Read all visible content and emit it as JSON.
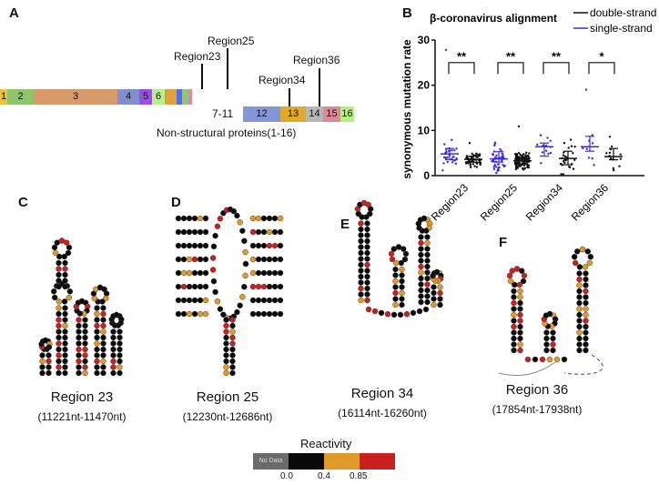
{
  "panels": {
    "A": "A",
    "B": "B",
    "C": "C",
    "D": "D",
    "E": "E",
    "F": "F"
  },
  "genome": {
    "row1": [
      {
        "label": "1",
        "color": "#f0c23c"
      },
      {
        "label": "2",
        "color": "#8fc46b"
      },
      {
        "label": "3",
        "color": "#d89a6a"
      },
      {
        "label": "4",
        "color": "#7f8fcf"
      },
      {
        "label": "5",
        "color": "#9a4fe0"
      },
      {
        "label": "6",
        "color": "#b9f28a"
      },
      {
        "label": "",
        "color": "#e0a23a"
      },
      {
        "label": "",
        "color": "#4f6fe8"
      },
      {
        "label": "",
        "color": "#93c47d"
      },
      {
        "label": "",
        "color": "#e08aa0"
      }
    ],
    "row2": [
      {
        "label": "12",
        "color": "#8596d6"
      },
      {
        "label": "13",
        "color": "#e3a928"
      },
      {
        "label": "14",
        "color": "#b7b7b7"
      },
      {
        "label": "15",
        "color": "#d98a96"
      },
      {
        "label": "16",
        "color": "#b5f07a"
      }
    ],
    "label_7_11": "7-11",
    "caption": "Non-structural proteins(1-16)",
    "regions": {
      "r23": "Region23",
      "r25": "Region25",
      "r34": "Region34",
      "r36": "Region36"
    }
  },
  "chart_data": {
    "type": "scatter",
    "title": "β-coronavirus alignment",
    "ylabel": "synonymous mutation rate",
    "ylim": [
      0,
      30
    ],
    "yticks": [
      "0",
      "10",
      "20",
      "30"
    ],
    "categories": [
      "Region23",
      "Region25",
      "Region34",
      "Region36"
    ],
    "legend": {
      "position": "top-right",
      "entries": [
        {
          "name": "double-strand",
          "color": "#111111"
        },
        {
          "name": "single-strand",
          "color": "#3a2be0"
        }
      ]
    },
    "series": [
      {
        "name": "single-strand",
        "color": "#3a2be0",
        "mean": [
          4.8,
          3.7,
          6.4,
          6.4
        ],
        "sd_low": [
          3.5,
          3.0,
          4.3,
          5.4
        ],
        "sd_high": [
          6.0,
          5.3,
          7.2,
          8.7
        ],
        "max": [
          27.8,
          7.3,
          8.9,
          19.0
        ],
        "n": [
          30,
          45,
          12,
          8
        ]
      },
      {
        "name": "double-strand",
        "color": "#111111",
        "mean": [
          3.6,
          3.3,
          3.8,
          4.2
        ],
        "sd_low": [
          3.0,
          2.6,
          2.4,
          3.5
        ],
        "sd_high": [
          4.3,
          4.0,
          5.4,
          6.0
        ],
        "max": [
          7.2,
          10.9,
          7.2,
          8.6
        ],
        "n": [
          60,
          120,
          25,
          12
        ]
      }
    ],
    "significance": [
      "**",
      "**",
      "**",
      "*"
    ]
  },
  "structures": [
    {
      "title": "Region 23",
      "range": "(11221nt-11470nt)"
    },
    {
      "title": "Region 25",
      "range": "(12230nt-12686nt)"
    },
    {
      "title": "Region 34",
      "range": "(16114nt-16260nt)"
    },
    {
      "title": "Region 36",
      "range": "(17854nt-17938nt)"
    }
  ],
  "reactivity": {
    "title": "Reactivity",
    "no_data": "No Data",
    "ticks": [
      "0.0",
      "0.4",
      "0.85"
    ],
    "colors": {
      "nodata": "#6b6b6b",
      "low": "#0a0a0a",
      "mid": "#e09a2a",
      "high": "#c8201e"
    }
  }
}
